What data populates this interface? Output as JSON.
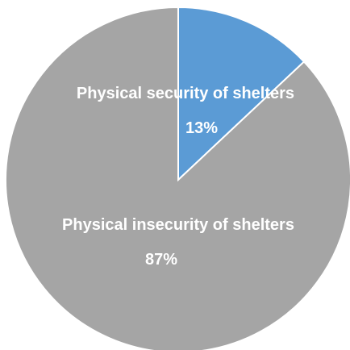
{
  "chart_data": {
    "type": "pie",
    "title": "",
    "start_angle_deg": 0,
    "direction": "clockwise",
    "slices": [
      {
        "label": "Physical security of shelters",
        "value": 13,
        "value_label": "13%",
        "color": "#5b9bd5"
      },
      {
        "label": "Physical insecurity of shelters",
        "value": 87,
        "value_label": "87%",
        "color": "#a5a5a5"
      }
    ],
    "legend": "none"
  }
}
